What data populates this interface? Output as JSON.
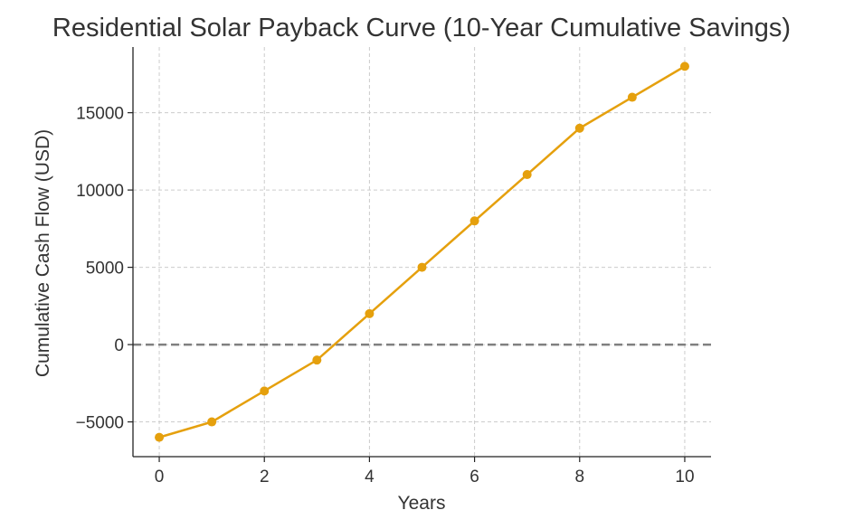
{
  "chart_data": {
    "type": "line",
    "title": "Residential Solar Payback Curve (10-Year Cumulative Savings)",
    "xlabel": "Years",
    "ylabel": "Cumulative Cash Flow (USD)",
    "x": [
      0,
      1,
      2,
      3,
      4,
      5,
      6,
      7,
      8,
      9,
      10
    ],
    "series": [
      {
        "values": [
          -6000,
          -5000,
          -3000,
          -1000,
          2000,
          5000,
          8000,
          11000,
          14000,
          16000,
          18000
        ],
        "color": "#E5A00D",
        "marker": "circle"
      }
    ],
    "xlim": [
      -0.5,
      10.5
    ],
    "ylim": [
      -7250,
      19250
    ],
    "xticks": [
      0,
      2,
      4,
      6,
      8,
      10
    ],
    "yticks": [
      -5000,
      0,
      5000,
      10000,
      15000
    ],
    "grid": true,
    "reference_line": {
      "y": 0,
      "style": "dashed",
      "color": "#808080"
    }
  }
}
